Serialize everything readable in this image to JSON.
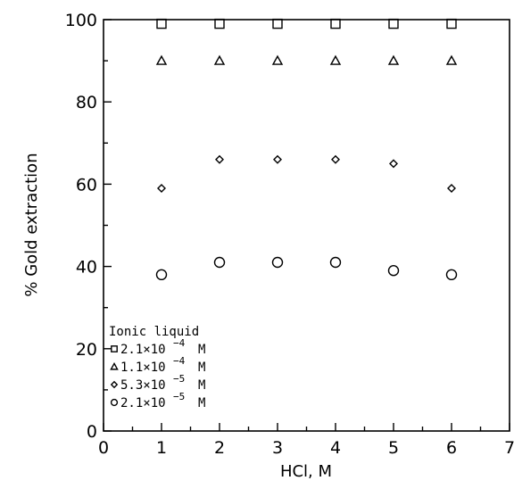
{
  "chart_data": {
    "type": "scatter",
    "title": "",
    "xlabel": "HCl, M",
    "ylabel": "% Gold extraction",
    "xlim": [
      0,
      7
    ],
    "ylim": [
      0,
      100
    ],
    "xticks": [
      "0",
      "1",
      "2",
      "3",
      "4",
      "5",
      "6",
      "7"
    ],
    "yticks": [
      "0",
      "20",
      "40",
      "60",
      "80",
      "100"
    ],
    "grid": false,
    "legend_title": "Ionic liquid",
    "legend_position": "bottom-left",
    "series": [
      {
        "name": "2.1×10⁻⁴ M",
        "mantissa": "2.1×10",
        "exponent": "−4",
        "unit": "M",
        "marker": "square",
        "x": [
          1,
          2,
          3,
          4,
          5,
          6
        ],
        "y": [
          99,
          99,
          99,
          99,
          99,
          99
        ]
      },
      {
        "name": "1.1×10⁻⁴ M",
        "mantissa": "1.1×10",
        "exponent": "−4",
        "unit": "M",
        "marker": "triangle",
        "x": [
          1,
          2,
          3,
          4,
          5,
          6
        ],
        "y": [
          90,
          90,
          90,
          90,
          90,
          90
        ]
      },
      {
        "name": "5.3×10⁻⁵ M",
        "mantissa": "5.3×10",
        "exponent": "−5",
        "unit": "M",
        "marker": "diamond",
        "x": [
          1,
          2,
          3,
          4,
          5,
          6
        ],
        "y": [
          59,
          66,
          66,
          66,
          65,
          59
        ]
      },
      {
        "name": "2.1×10⁻⁵ M",
        "mantissa": "2.1×10",
        "exponent": "−5",
        "unit": "M",
        "marker": "circle",
        "x": [
          1,
          2,
          3,
          4,
          5,
          6
        ],
        "y": [
          38,
          41,
          41,
          41,
          39,
          38
        ]
      }
    ]
  }
}
